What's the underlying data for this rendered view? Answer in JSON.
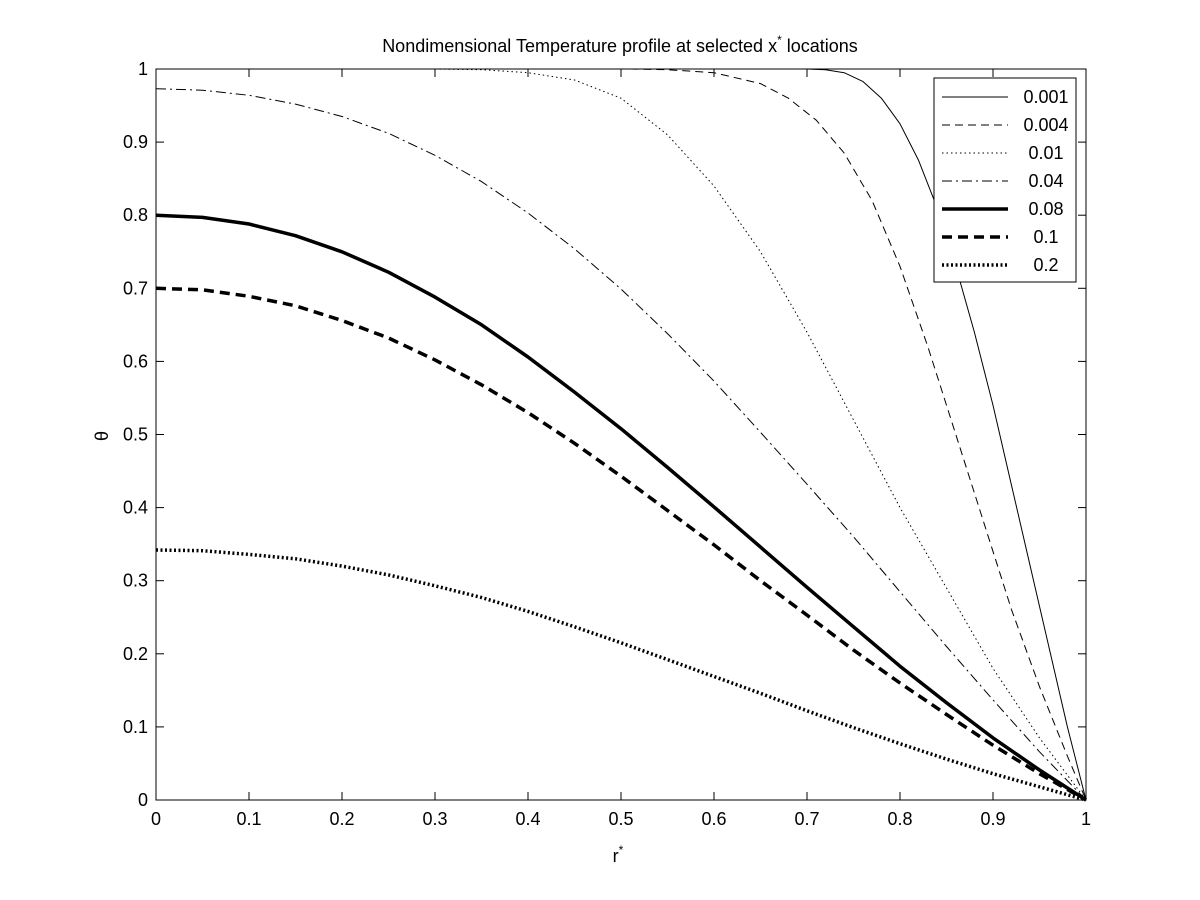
{
  "chart_data": {
    "type": "line",
    "title": "Nondimensional Temperature profile at selected x* locations",
    "title_main": "Nondimensional Temperature profile at selected x",
    "title_sup": "*",
    "title_tail": " locations",
    "xlabel_main": "r",
    "xlabel_sup": "*",
    "ylabel": "θ",
    "xlim": [
      0,
      1
    ],
    "ylim": [
      0,
      1
    ],
    "xticks": [
      "0",
      "0.1",
      "0.2",
      "0.3",
      "0.4",
      "0.5",
      "0.6",
      "0.7",
      "0.8",
      "0.9",
      "1"
    ],
    "yticks": [
      "0",
      "0.1",
      "0.2",
      "0.3",
      "0.4",
      "0.5",
      "0.6",
      "0.7",
      "0.8",
      "0.9",
      "1"
    ],
    "grid": false,
    "legend_position": "top-right",
    "series": [
      {
        "name": "0.001",
        "style": "thin-solid",
        "points": [
          [
            0.7,
            1.0
          ],
          [
            0.72,
            0.999
          ],
          [
            0.74,
            0.995
          ],
          [
            0.76,
            0.983
          ],
          [
            0.78,
            0.96
          ],
          [
            0.8,
            0.925
          ],
          [
            0.82,
            0.875
          ],
          [
            0.84,
            0.81
          ],
          [
            0.86,
            0.73
          ],
          [
            0.88,
            0.64
          ],
          [
            0.9,
            0.54
          ],
          [
            0.92,
            0.43
          ],
          [
            0.94,
            0.32
          ],
          [
            0.96,
            0.21
          ],
          [
            0.98,
            0.1
          ],
          [
            1.0,
            0.0
          ]
        ]
      },
      {
        "name": "0.004",
        "style": "thin-dashed",
        "points": [
          [
            0.51,
            1.0
          ],
          [
            0.55,
            0.999
          ],
          [
            0.6,
            0.995
          ],
          [
            0.65,
            0.98
          ],
          [
            0.68,
            0.96
          ],
          [
            0.71,
            0.93
          ],
          [
            0.74,
            0.885
          ],
          [
            0.77,
            0.82
          ],
          [
            0.8,
            0.73
          ],
          [
            0.83,
            0.62
          ],
          [
            0.86,
            0.5
          ],
          [
            0.89,
            0.38
          ],
          [
            0.92,
            0.26
          ],
          [
            0.95,
            0.155
          ],
          [
            0.98,
            0.06
          ],
          [
            1.0,
            0.0
          ]
        ]
      },
      {
        "name": "0.01",
        "style": "thin-dotted",
        "points": [
          [
            0.3,
            1.0
          ],
          [
            0.35,
            0.999
          ],
          [
            0.4,
            0.995
          ],
          [
            0.45,
            0.985
          ],
          [
            0.5,
            0.96
          ],
          [
            0.55,
            0.91
          ],
          [
            0.6,
            0.84
          ],
          [
            0.65,
            0.75
          ],
          [
            0.7,
            0.64
          ],
          [
            0.75,
            0.52
          ],
          [
            0.8,
            0.4
          ],
          [
            0.85,
            0.29
          ],
          [
            0.9,
            0.18
          ],
          [
            0.95,
            0.085
          ],
          [
            1.0,
            0.0
          ]
        ]
      },
      {
        "name": "0.04",
        "style": "thin-dashdot",
        "points": [
          [
            0.0,
            0.973
          ],
          [
            0.05,
            0.971
          ],
          [
            0.1,
            0.964
          ],
          [
            0.15,
            0.952
          ],
          [
            0.2,
            0.935
          ],
          [
            0.25,
            0.912
          ],
          [
            0.3,
            0.882
          ],
          [
            0.35,
            0.846
          ],
          [
            0.4,
            0.803
          ],
          [
            0.45,
            0.754
          ],
          [
            0.5,
            0.699
          ],
          [
            0.55,
            0.638
          ],
          [
            0.6,
            0.573
          ],
          [
            0.65,
            0.503
          ],
          [
            0.7,
            0.432
          ],
          [
            0.75,
            0.36
          ],
          [
            0.8,
            0.285
          ],
          [
            0.85,
            0.21
          ],
          [
            0.9,
            0.137
          ],
          [
            0.95,
            0.066
          ],
          [
            1.0,
            0.0
          ]
        ]
      },
      {
        "name": "0.08",
        "style": "thick-solid",
        "points": [
          [
            0.0,
            0.8
          ],
          [
            0.05,
            0.797
          ],
          [
            0.1,
            0.788
          ],
          [
            0.15,
            0.772
          ],
          [
            0.2,
            0.75
          ],
          [
            0.25,
            0.722
          ],
          [
            0.3,
            0.688
          ],
          [
            0.35,
            0.65
          ],
          [
            0.4,
            0.606
          ],
          [
            0.45,
            0.558
          ],
          [
            0.5,
            0.508
          ],
          [
            0.55,
            0.455
          ],
          [
            0.6,
            0.401
          ],
          [
            0.65,
            0.346
          ],
          [
            0.7,
            0.291
          ],
          [
            0.75,
            0.237
          ],
          [
            0.8,
            0.183
          ],
          [
            0.85,
            0.133
          ],
          [
            0.9,
            0.085
          ],
          [
            0.95,
            0.041
          ],
          [
            1.0,
            0.0
          ]
        ]
      },
      {
        "name": "0.1",
        "style": "thick-dashed",
        "points": [
          [
            0.0,
            0.7
          ],
          [
            0.05,
            0.698
          ],
          [
            0.1,
            0.689
          ],
          [
            0.15,
            0.676
          ],
          [
            0.2,
            0.656
          ],
          [
            0.25,
            0.632
          ],
          [
            0.3,
            0.602
          ],
          [
            0.35,
            0.568
          ],
          [
            0.4,
            0.53
          ],
          [
            0.45,
            0.488
          ],
          [
            0.5,
            0.443
          ],
          [
            0.55,
            0.396
          ],
          [
            0.6,
            0.349
          ],
          [
            0.65,
            0.3
          ],
          [
            0.7,
            0.253
          ],
          [
            0.75,
            0.205
          ],
          [
            0.8,
            0.16
          ],
          [
            0.85,
            0.117
          ],
          [
            0.9,
            0.075
          ],
          [
            0.95,
            0.036
          ],
          [
            1.0,
            0.0
          ]
        ]
      },
      {
        "name": "0.2",
        "style": "thick-dotted",
        "points": [
          [
            0.0,
            0.342
          ],
          [
            0.05,
            0.341
          ],
          [
            0.1,
            0.336
          ],
          [
            0.15,
            0.33
          ],
          [
            0.2,
            0.32
          ],
          [
            0.25,
            0.308
          ],
          [
            0.3,
            0.293
          ],
          [
            0.35,
            0.277
          ],
          [
            0.4,
            0.258
          ],
          [
            0.45,
            0.237
          ],
          [
            0.5,
            0.215
          ],
          [
            0.55,
            0.192
          ],
          [
            0.6,
            0.169
          ],
          [
            0.65,
            0.146
          ],
          [
            0.7,
            0.122
          ],
          [
            0.75,
            0.099
          ],
          [
            0.8,
            0.077
          ],
          [
            0.85,
            0.056
          ],
          [
            0.9,
            0.036
          ],
          [
            0.95,
            0.018
          ],
          [
            1.0,
            0.0
          ]
        ]
      }
    ]
  }
}
